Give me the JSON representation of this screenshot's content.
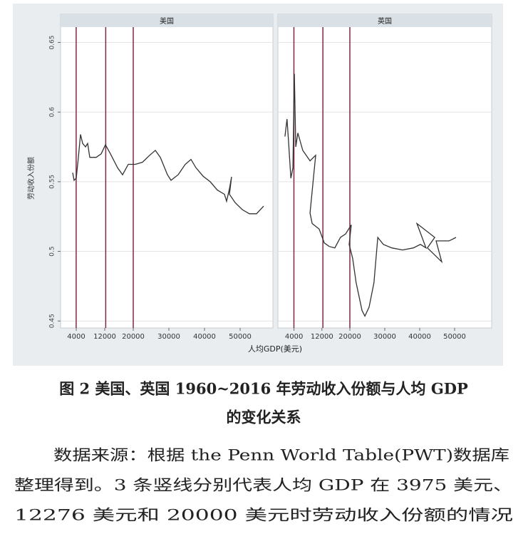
{
  "chart_data": [
    {
      "type": "line",
      "title": "美国",
      "xlabel": "人均GDP(美元)",
      "ylabel": "劳动收入份额",
      "xlim": [
        0,
        59000
      ],
      "xticks": [
        4000,
        12000,
        20000,
        30000,
        40000,
        50000
      ],
      "ylim": [
        0.445,
        0.66
      ],
      "yticks": [
        0.45,
        0.5,
        0.55,
        0.6,
        0.65
      ],
      "grid": true,
      "vlines": [
        3975,
        12276,
        20000
      ],
      "vline_color": "#7a2a45",
      "series": [
        {
          "color": "#333333",
          "x": [
            3000,
            3400,
            4000,
            4600,
            5200,
            5800,
            6600,
            7200,
            7800,
            9600,
            11000,
            12200,
            13600,
            15600,
            17000,
            18600,
            20600,
            22600,
            24600,
            26200,
            27600,
            29600,
            30600,
            32600,
            34600,
            36200,
            37600,
            39600,
            41600,
            43600,
            45600,
            46200,
            47000,
            47600,
            47000,
            48600,
            50600,
            52600,
            54600,
            56600
          ],
          "values": [
            0.5565,
            0.551,
            0.5525,
            0.5675,
            0.584,
            0.5775,
            0.575,
            0.5775,
            0.5675,
            0.5675,
            0.57,
            0.5765,
            0.57,
            0.56,
            0.555,
            0.5625,
            0.5625,
            0.564,
            0.569,
            0.5725,
            0.5675,
            0.555,
            0.551,
            0.555,
            0.5625,
            0.566,
            0.56,
            0.554,
            0.55,
            0.544,
            0.541,
            0.536,
            0.545,
            0.5535,
            0.541,
            0.535,
            0.53,
            0.527,
            0.527,
            0.5325
          ]
        }
      ]
    },
    {
      "type": "line",
      "title": "英国",
      "xlim": [
        0,
        60000
      ],
      "xticks": [
        4000,
        12000,
        20000,
        30000,
        40000,
        50000
      ],
      "ylim": [
        0.445,
        0.66
      ],
      "yticks": [
        0.45,
        0.5,
        0.55,
        0.6,
        0.65
      ],
      "grid": true,
      "vlines": [
        3975,
        12276,
        20000
      ],
      "vline_color": "#7a2a45",
      "series": [
        {
          "color": "#333333",
          "x": [
            1400,
            2000,
            2400,
            3100,
            3700,
            4100,
            4500,
            5100,
            6500,
            8600,
            10200,
            8600,
            9200,
            11200,
            12700,
            14100,
            15700,
            17300,
            18800,
            20400,
            19800,
            20800,
            21800,
            23500,
            24300,
            25500,
            26900,
            28000,
            29600,
            32000,
            35100,
            38200,
            40200,
            41800,
            39200,
            44300,
            42200,
            46300,
            44700,
            48400,
            50400
          ],
          "values": [
            0.5825,
            0.595,
            0.58,
            0.5525,
            0.56,
            0.6275,
            0.575,
            0.585,
            0.5725,
            0.565,
            0.569,
            0.5275,
            0.52,
            0.516,
            0.506,
            0.5035,
            0.5025,
            0.51,
            0.5125,
            0.519,
            0.505,
            0.495,
            0.4775,
            0.4575,
            0.4535,
            0.46,
            0.4775,
            0.51,
            0.505,
            0.5025,
            0.501,
            0.5025,
            0.505,
            0.5025,
            0.52,
            0.51,
            0.5025,
            0.4925,
            0.5075,
            0.5075,
            0.51
          ]
        }
      ]
    }
  ],
  "caption": [
    "图 2  美国、英国 1960~2016 年劳动收入份额与人均 GDP",
    "的变化关系"
  ],
  "note": [
    "数据来源：根据 the Penn World Table(PWT)数据库",
    "整理得到。3 条竖线分别代表人均 GDP 在 3975 美元、",
    "12276 美元和 20000 美元时劳动收入份额的情况"
  ]
}
